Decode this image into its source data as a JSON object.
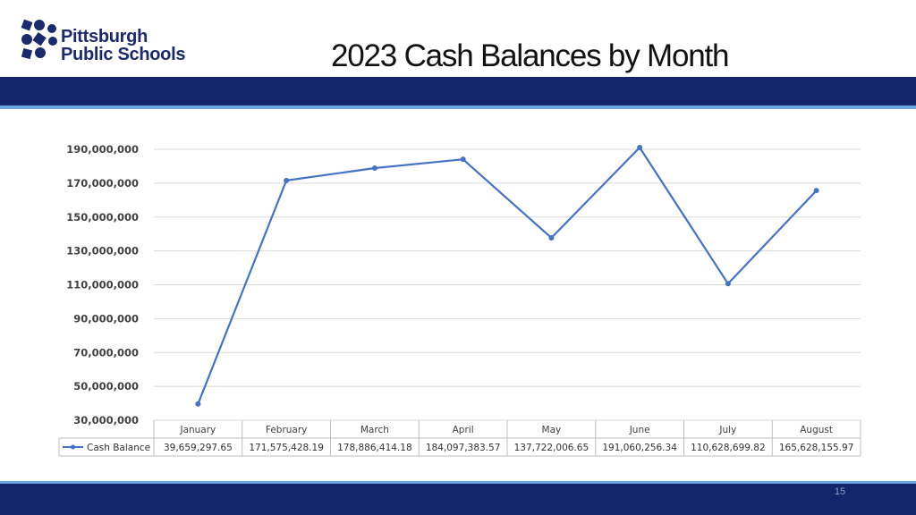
{
  "header": {
    "logo_line1": "Pittsburgh",
    "logo_line2": "Public Schools",
    "title": "2023 Cash Balances by Month"
  },
  "footer": {
    "page_number": "15"
  },
  "colors": {
    "brand_navy": "#13246b",
    "accent_blue": "#6aa6dd",
    "series_line": "#4472c4"
  },
  "chart_data": {
    "type": "line",
    "title": "",
    "categories": [
      "January",
      "February",
      "March",
      "April",
      "May",
      "June",
      "July",
      "August"
    ],
    "series": [
      {
        "name": "Cash Balance",
        "values": [
          39659297.65,
          171575428.19,
          178886414.18,
          184097383.57,
          137722006.65,
          191060256.34,
          110628699.82,
          165628155.97
        ],
        "labels": [
          "39,659,297.65",
          "171,575,428.19",
          "178,886,414.18",
          "184,097,383.57",
          "137,722,006.65",
          "191,060,256.34",
          "110,628,699.82",
          "165,628,155.97"
        ]
      }
    ],
    "ylim": [
      30000000,
      190000000
    ],
    "y_ticks": [
      30000000,
      50000000,
      70000000,
      90000000,
      110000000,
      130000000,
      150000000,
      170000000,
      190000000
    ],
    "y_tick_labels": [
      "30,000,000",
      "50,000,000",
      "70,000,000",
      "90,000,000",
      "110,000,000",
      "130,000,000",
      "150,000,000",
      "170,000,000",
      "190,000,000"
    ],
    "grid": true,
    "legend": "data-table"
  }
}
